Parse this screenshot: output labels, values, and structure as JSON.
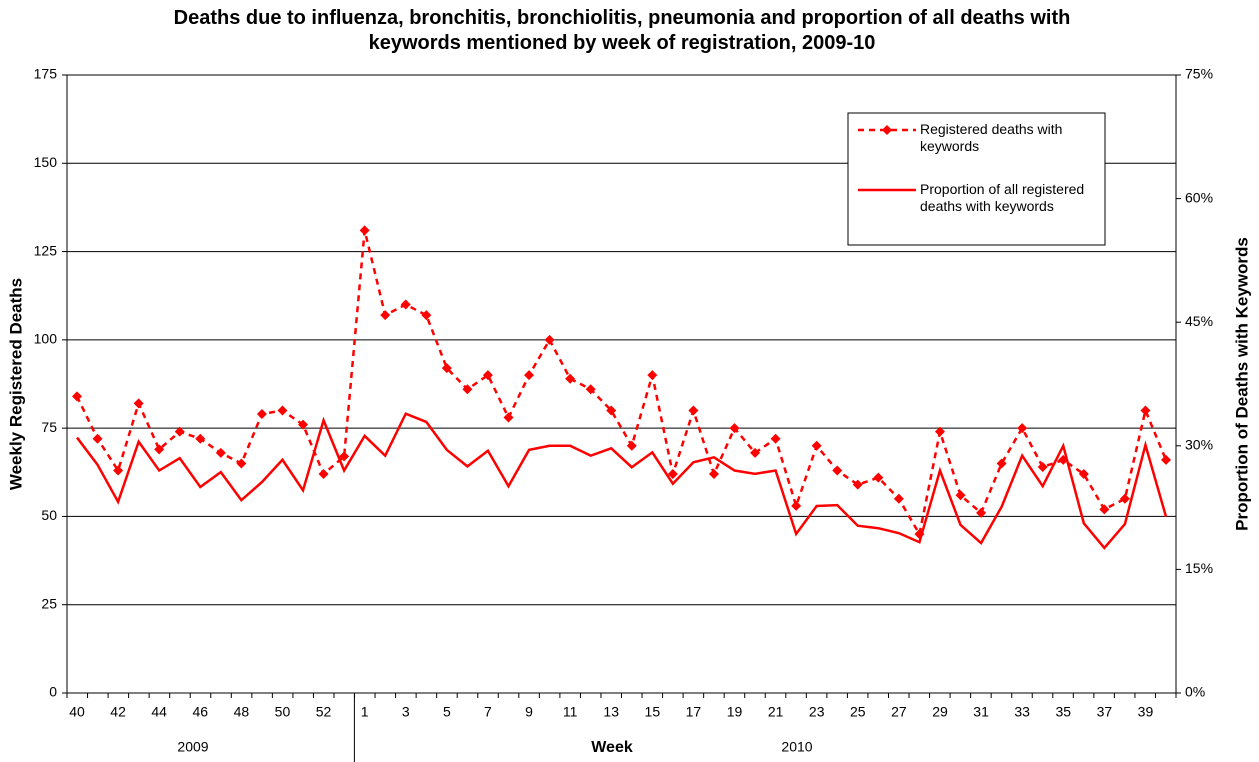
{
  "chart_data": {
    "type": "line",
    "title": "Deaths due to influenza, bronchitis, bronchiolitis, pneumonia and proportion of all deaths with keywords mentioned by week of registration, 2009-10",
    "x_label": "Week",
    "y_label": "Weekly Registered Deaths",
    "y2_label": "Proportion of Deaths with Keywords",
    "x_group_labels": [
      "2009",
      "2010"
    ],
    "categories": [
      40,
      null,
      42,
      null,
      44,
      null,
      46,
      null,
      48,
      null,
      50,
      null,
      52,
      null,
      1,
      null,
      3,
      null,
      5,
      null,
      7,
      null,
      9,
      null,
      11,
      null,
      13,
      null,
      15,
      null,
      17,
      null,
      19,
      null,
      21,
      null,
      23,
      null,
      25,
      null,
      27,
      null,
      29,
      null,
      31,
      null,
      33,
      null,
      35,
      null,
      37,
      null,
      39,
      null
    ],
    "series": [
      {
        "name": "Registered deaths with keywords",
        "color": "#ff0000",
        "style": "dashed",
        "marker": "diamond",
        "values": [
          84,
          72,
          63,
          82,
          69,
          74,
          72,
          68,
          65,
          79,
          80,
          76,
          62,
          67,
          131,
          107,
          110,
          107,
          92,
          86,
          90,
          78,
          90,
          100,
          89,
          86,
          80,
          70,
          90,
          62,
          80,
          62,
          75,
          68,
          72,
          53,
          70,
          63,
          59,
          61,
          55,
          45,
          74,
          56,
          51,
          65,
          75,
          64,
          66,
          62,
          52,
          55,
          80,
          66
        ]
      },
      {
        "name": "Proportion of all registered deaths with keywords",
        "color": "#ff0000",
        "style": "solid",
        "axis": "y2",
        "values": [
          31,
          27.7,
          23.2,
          30.5,
          27,
          28.5,
          25,
          26.8,
          23.4,
          25.6,
          28.3,
          24.6,
          33.1,
          27,
          31.2,
          28.8,
          33.9,
          32.9,
          29.5,
          27.5,
          29.4,
          25.1,
          29.5,
          30,
          30,
          28.8,
          29.7,
          27.4,
          29.2,
          25.4,
          28,
          28.6,
          27,
          26.6,
          27,
          19.3,
          22.7,
          22.8,
          20.3,
          20,
          19.4,
          18.3,
          27,
          20.4,
          18.2,
          22.6,
          28.8,
          25.1,
          30,
          20.6,
          17.6,
          20.5,
          30.1,
          21.4
        ]
      }
    ],
    "ylim": [
      0,
      175
    ],
    "yticks": [
      0,
      25,
      50,
      75,
      100,
      125,
      150,
      175
    ],
    "y2lim": [
      0,
      75
    ],
    "y2ticks": [
      {
        "value": 0,
        "label": "0%"
      },
      {
        "value": 15,
        "label": "15%"
      },
      {
        "value": 30,
        "label": "30%"
      },
      {
        "value": 45,
        "label": "45%"
      },
      {
        "value": 60,
        "label": "60%"
      },
      {
        "value": 75,
        "label": "75%"
      }
    ],
    "grid": true,
    "legend": "upper right"
  }
}
